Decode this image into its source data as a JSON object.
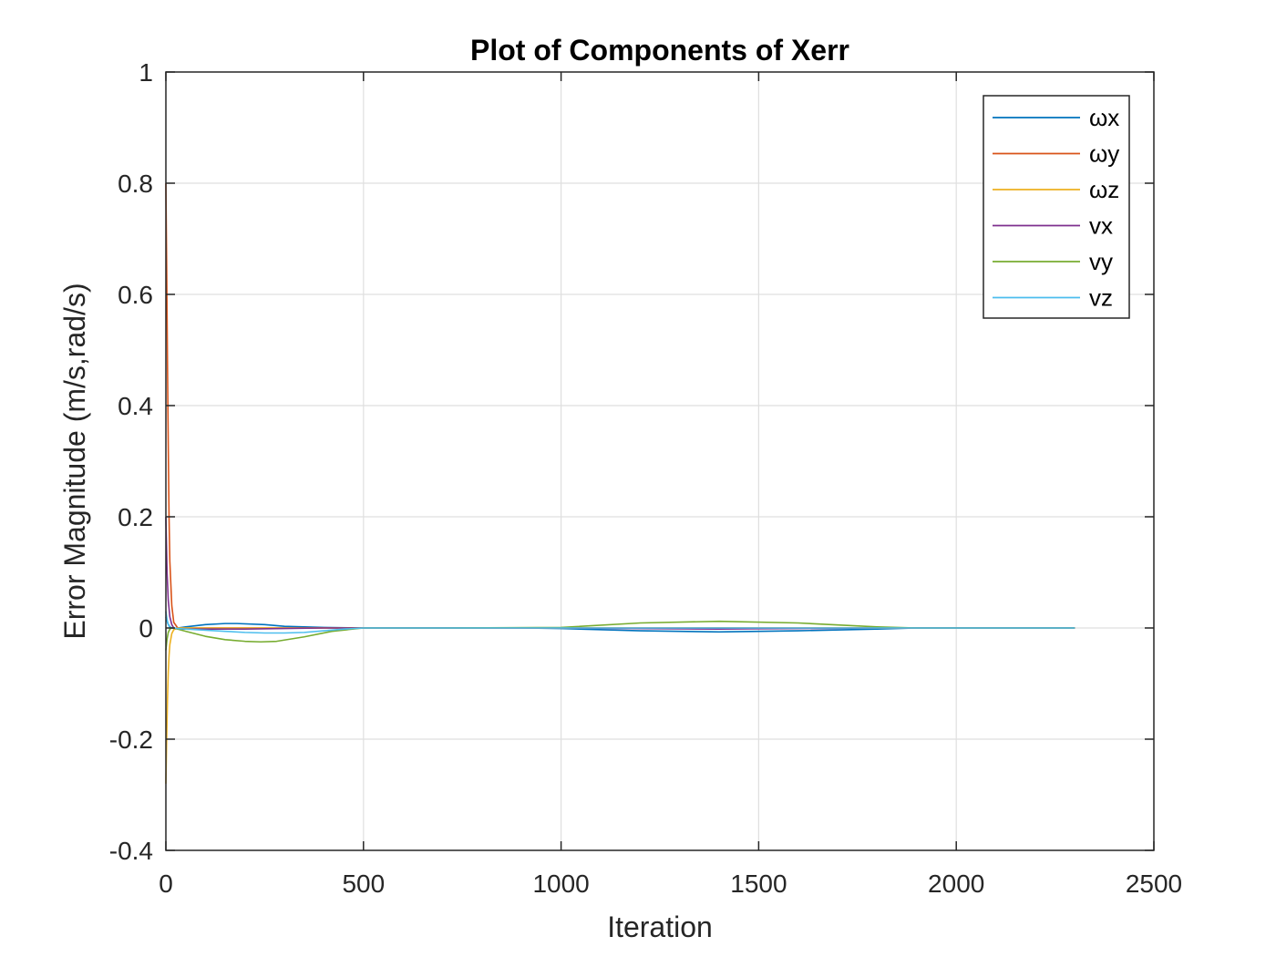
{
  "chart_data": {
    "type": "line",
    "title": "Plot of Components of Xerr",
    "xlabel": "Iteration",
    "ylabel": "Error Magnitude (m/s,rad/s)",
    "xlim": [
      0,
      2500
    ],
    "ylim": [
      -0.4,
      1
    ],
    "xticks": [
      0,
      500,
      1000,
      1500,
      2000,
      2500
    ],
    "xtick_labels": [
      "0",
      "500",
      "1000",
      "1500",
      "2000",
      "2500"
    ],
    "yticks": [
      -0.4,
      -0.2,
      0,
      0.2,
      0.4,
      0.6,
      0.8,
      1
    ],
    "ytick_labels": [
      "-0.4",
      "-0.2",
      "0",
      "0.2",
      "0.4",
      "0.6",
      "0.8",
      "1"
    ],
    "grid": true,
    "legend_position": "top-right",
    "series": [
      {
        "name": "ωx",
        "color": "#0072BD",
        "x": [
          0,
          2,
          5,
          10,
          15,
          20,
          30,
          50,
          100,
          150,
          180,
          250,
          300,
          400,
          500,
          700,
          900,
          1000,
          1200,
          1400,
          1600,
          1800,
          1900,
          2100,
          2300
        ],
        "y": [
          0.02,
          0.015,
          0.008,
          0.002,
          0.0,
          -0.001,
          0.0,
          0.002,
          0.006,
          0.008,
          0.008,
          0.006,
          0.003,
          0.001,
          0.0,
          0.0,
          0.0,
          -0.001,
          -0.005,
          -0.007,
          -0.005,
          -0.002,
          0.0,
          0.0,
          0.0
        ]
      },
      {
        "name": "ωy",
        "color": "#D95319",
        "x": [
          0,
          2,
          4,
          6,
          8,
          10,
          15,
          20,
          30,
          50,
          100,
          200,
          500,
          1000,
          1500,
          2000,
          2300
        ],
        "y": [
          0.8,
          0.65,
          0.48,
          0.33,
          0.2,
          0.12,
          0.04,
          0.01,
          0.0,
          0.0,
          0.0,
          0.0,
          0.0,
          0.0,
          0.0,
          0.0,
          0.0
        ]
      },
      {
        "name": "ωz",
        "color": "#EDB120",
        "x": [
          0,
          2,
          4,
          6,
          8,
          10,
          15,
          20,
          30,
          50,
          100,
          200,
          500,
          1000,
          1500,
          2000,
          2300
        ],
        "y": [
          -0.28,
          -0.2,
          -0.13,
          -0.08,
          -0.05,
          -0.03,
          -0.01,
          -0.003,
          0.0,
          0.0,
          0.0,
          0.0,
          0.0,
          0.0,
          0.0,
          0.0,
          0.0
        ]
      },
      {
        "name": "vx",
        "color": "#7E2F8E",
        "x": [
          0,
          3,
          6,
          10,
          15,
          20,
          30,
          50,
          100,
          200,
          300,
          400,
          500,
          1000,
          1400,
          1800,
          2000,
          2300
        ],
        "y": [
          0.2,
          0.1,
          0.05,
          0.02,
          0.006,
          0.0,
          -0.002,
          -0.002,
          -0.002,
          -0.002,
          -0.001,
          0.0,
          0.0,
          0.0,
          -0.002,
          0.0,
          0.0,
          0.0
        ]
      },
      {
        "name": "vy",
        "color": "#77AC30",
        "x": [
          0,
          3,
          6,
          10,
          15,
          20,
          30,
          50,
          100,
          150,
          200,
          240,
          280,
          350,
          420,
          500,
          700,
          1000,
          1200,
          1400,
          1600,
          1800,
          1900,
          2100,
          2300
        ],
        "y": [
          -0.04,
          -0.02,
          -0.008,
          -0.002,
          0.0,
          0.0,
          -0.002,
          -0.006,
          -0.015,
          -0.021,
          -0.024,
          -0.025,
          -0.024,
          -0.016,
          -0.006,
          0.0,
          0.0,
          0.001,
          0.009,
          0.012,
          0.009,
          0.002,
          0.0,
          0.0,
          0.0
        ]
      },
      {
        "name": "vz",
        "color": "#4DBEEE",
        "x": [
          0,
          3,
          6,
          10,
          15,
          20,
          30,
          50,
          100,
          150,
          200,
          250,
          300,
          350,
          400,
          450,
          500,
          1000,
          1500,
          2000,
          2300
        ],
        "y": [
          0.03,
          0.015,
          0.006,
          0.001,
          0.0,
          0.0,
          -0.001,
          -0.002,
          -0.004,
          -0.006,
          -0.008,
          -0.009,
          -0.009,
          -0.008,
          -0.005,
          -0.002,
          0.0,
          0.0,
          0.0,
          0.0,
          0.0
        ]
      }
    ]
  }
}
